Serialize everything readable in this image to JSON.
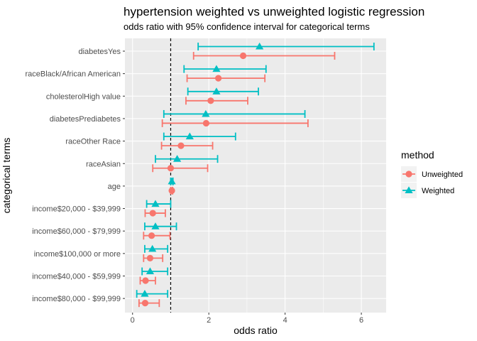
{
  "chart_data": {
    "type": "scatter",
    "title": "hypertension weighted vs unweighted logistic regression",
    "subtitle": "odds ratio with 95% confidence interval for categorical terms",
    "xlabel": "odds ratio",
    "ylabel": "categorical terms",
    "xlim": [
      -0.2,
      6.65
    ],
    "x_ticks": [
      0,
      2,
      4,
      6
    ],
    "reference_line": 1,
    "grid": true,
    "legend": {
      "title": "method",
      "position": "right"
    },
    "categories": [
      "diabetesYes",
      "raceBlack/African American",
      "cholesterolHigh value",
      "diabetesPrediabetes",
      "raceOther Race",
      "raceAsian",
      "age",
      "income$20,000 - $39,999",
      "income$60,000 - $79,999",
      "income$100,000 or more",
      "income$40,000 - $59,999",
      "income$80,000 - $99,999"
    ],
    "series": [
      {
        "name": "Unweighted",
        "color": "#F8766D",
        "marker": "circle",
        "estimate": [
          2.9,
          2.25,
          2.05,
          1.93,
          1.27,
          1.0,
          1.03,
          0.53,
          0.5,
          0.46,
          0.34,
          0.33
        ],
        "lower": [
          1.6,
          1.43,
          1.4,
          0.78,
          0.76,
          0.53,
          1.0,
          0.33,
          0.29,
          0.29,
          0.2,
          0.17
        ],
        "upper": [
          5.3,
          3.47,
          3.02,
          4.6,
          2.1,
          1.97,
          1.05,
          0.86,
          0.98,
          0.79,
          0.6,
          0.7
        ]
      },
      {
        "name": "Weighted",
        "color": "#00BFC4",
        "marker": "triangle",
        "estimate": [
          3.33,
          2.2,
          2.2,
          1.92,
          1.5,
          1.17,
          1.03,
          0.6,
          0.6,
          0.52,
          0.46,
          0.32
        ],
        "lower": [
          1.72,
          1.35,
          1.45,
          0.82,
          0.82,
          0.6,
          1.0,
          0.37,
          0.32,
          0.32,
          0.25,
          0.11
        ],
        "upper": [
          6.33,
          3.5,
          3.3,
          4.52,
          2.7,
          2.23,
          1.06,
          1.0,
          1.15,
          0.92,
          0.92,
          0.92
        ]
      }
    ]
  }
}
